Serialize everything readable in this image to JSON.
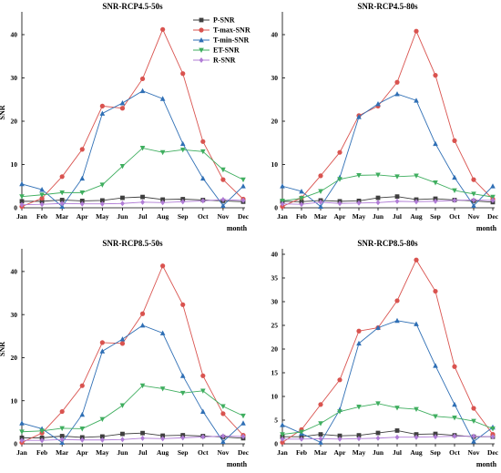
{
  "colors": {
    "P-SNR": "#3f3f3f",
    "T-max-SNR": "#d9534f",
    "T-min-SNR": "#2f6fb5",
    "ET-SNR": "#3fae5f",
    "R-SNR": "#b07cd6"
  },
  "legend": [
    "P-SNR",
    "T-max-SNR",
    "T-min-SNR",
    "ET-SNR",
    "R-SNR"
  ],
  "chart_data": [
    {
      "type": "line",
      "title": "SNR-RCP4.5-50s",
      "xlabel": "month",
      "ylabel": "SNR",
      "categories": [
        "Jan",
        "Feb",
        "Mar",
        "Apr",
        "May",
        "Jun",
        "Jul",
        "Aug",
        "Sep",
        "Oct",
        "Nov",
        "Dec"
      ],
      "ylim": [
        0,
        44
      ],
      "yticks": [
        0,
        10,
        20,
        30,
        40
      ],
      "legend_position": "top-right",
      "series": [
        {
          "name": "P-SNR",
          "marker": "square",
          "values": [
            1.5,
            1.5,
            1.8,
            1.6,
            1.7,
            2.3,
            2.5,
            1.9,
            2.0,
            1.8,
            1.6,
            1.4
          ]
        },
        {
          "name": "T-max-SNR",
          "marker": "circle",
          "values": [
            0.3,
            2.2,
            7.2,
            13.5,
            23.5,
            23.0,
            29.8,
            41.2,
            31.0,
            15.3,
            6.5,
            2.0
          ]
        },
        {
          "name": "T-min-SNR",
          "marker": "triangle-up",
          "values": [
            5.5,
            4.2,
            0.3,
            6.8,
            21.8,
            24.2,
            27.0,
            25.2,
            14.8,
            6.8,
            0.5,
            5.0
          ]
        },
        {
          "name": "ET-SNR",
          "marker": "triangle-down",
          "values": [
            2.6,
            3.0,
            3.5,
            3.5,
            5.3,
            9.6,
            13.8,
            12.8,
            13.4,
            13.0,
            8.8,
            6.5
          ]
        },
        {
          "name": "R-SNR",
          "marker": "diamond",
          "values": [
            0.7,
            0.8,
            1.0,
            0.9,
            0.9,
            1.0,
            1.3,
            1.2,
            1.4,
            1.6,
            1.9,
            1.7
          ]
        }
      ]
    },
    {
      "type": "line",
      "title": "SNR-RCP4.5-80s",
      "xlabel": "month",
      "ylabel": "",
      "categories": [
        "Jan",
        "Feb",
        "Mar",
        "Apr",
        "May",
        "Jun",
        "Jul",
        "Aug",
        "Sep",
        "Oct",
        "Nov",
        "Dec"
      ],
      "ylim": [
        0,
        44
      ],
      "yticks": [
        0,
        10,
        20,
        30,
        40
      ],
      "series": [
        {
          "name": "P-SNR",
          "marker": "square",
          "values": [
            1.5,
            1.4,
            1.7,
            1.5,
            1.6,
            2.3,
            2.6,
            1.9,
            2.1,
            1.8,
            1.6,
            1.3
          ]
        },
        {
          "name": "T-max-SNR",
          "marker": "circle",
          "values": [
            0.3,
            2.3,
            7.4,
            12.8,
            21.3,
            23.5,
            29.0,
            40.8,
            30.6,
            15.5,
            6.5,
            2.0
          ]
        },
        {
          "name": "T-min-SNR",
          "marker": "triangle-up",
          "values": [
            5.0,
            3.8,
            0.3,
            7.0,
            21.0,
            24.0,
            26.3,
            24.8,
            14.8,
            7.0,
            0.5,
            5.0
          ]
        },
        {
          "name": "ET-SNR",
          "marker": "triangle-down",
          "values": [
            1.6,
            2.2,
            3.8,
            6.6,
            7.5,
            7.6,
            7.2,
            7.4,
            5.8,
            4.0,
            3.2,
            2.5
          ]
        },
        {
          "name": "R-SNR",
          "marker": "diamond",
          "values": [
            0.9,
            0.8,
            1.3,
            1.0,
            1.1,
            1.2,
            1.5,
            1.4,
            1.5,
            1.7,
            1.8,
            1.7
          ]
        }
      ]
    },
    {
      "type": "line",
      "title": "SNR-RCP8.5-50s",
      "xlabel": "month",
      "ylabel": "SNR",
      "categories": [
        "Jan",
        "Feb",
        "Mar",
        "Apr",
        "May",
        "Jun",
        "Jul",
        "Aug",
        "Sep",
        "Oct",
        "Nov",
        "Dec"
      ],
      "ylim": [
        0,
        44
      ],
      "yticks": [
        0,
        10,
        20,
        30,
        40
      ],
      "series": [
        {
          "name": "P-SNR",
          "marker": "square",
          "values": [
            1.4,
            1.4,
            1.8,
            1.5,
            1.7,
            2.3,
            2.5,
            1.9,
            2.0,
            1.8,
            1.6,
            1.3
          ]
        },
        {
          "name": "T-max-SNR",
          "marker": "circle",
          "values": [
            0.3,
            2.5,
            7.5,
            13.5,
            23.5,
            23.3,
            30.2,
            41.3,
            32.3,
            15.8,
            7.0,
            2.0
          ]
        },
        {
          "name": "T-min-SNR",
          "marker": "triangle-up",
          "values": [
            4.8,
            3.5,
            0.3,
            6.8,
            21.5,
            24.3,
            27.5,
            25.7,
            15.8,
            7.5,
            0.5,
            4.8
          ]
        },
        {
          "name": "ET-SNR",
          "marker": "triangle-down",
          "values": [
            2.8,
            3.0,
            3.6,
            3.5,
            5.7,
            8.9,
            13.5,
            12.8,
            11.8,
            12.3,
            8.7,
            6.5
          ]
        },
        {
          "name": "R-SNR",
          "marker": "diamond",
          "values": [
            0.8,
            0.8,
            1.0,
            0.9,
            0.9,
            1.0,
            1.3,
            1.2,
            1.4,
            1.6,
            1.8,
            1.7
          ]
        }
      ]
    },
    {
      "type": "line",
      "title": "SNR-RCP8.5-80s",
      "xlabel": "month",
      "ylabel": "",
      "categories": [
        "Jan",
        "Feb",
        "Mar",
        "Apr",
        "May",
        "Jun",
        "Jul",
        "Aug",
        "Sep",
        "Oct",
        "Nov",
        "Dec"
      ],
      "ylim": [
        0,
        40
      ],
      "yticks": [
        0,
        5,
        10,
        15,
        20,
        25,
        30,
        35,
        40
      ],
      "series": [
        {
          "name": "P-SNR",
          "marker": "square",
          "values": [
            1.5,
            1.5,
            2.0,
            1.7,
            1.8,
            2.3,
            2.8,
            2.0,
            2.1,
            1.8,
            1.5,
            1.5
          ]
        },
        {
          "name": "T-max-SNR",
          "marker": "circle",
          "values": [
            0.3,
            3.0,
            8.3,
            13.5,
            23.8,
            24.5,
            30.2,
            38.8,
            32.2,
            16.3,
            7.5,
            2.0
          ]
        },
        {
          "name": "T-min-SNR",
          "marker": "triangle-up",
          "values": [
            4.0,
            2.2,
            0.3,
            7.2,
            21.2,
            24.5,
            26.0,
            25.3,
            16.5,
            8.3,
            0.5,
            3.5
          ]
        },
        {
          "name": "ET-SNR",
          "marker": "triangle-down",
          "values": [
            2.0,
            2.5,
            4.3,
            6.8,
            7.8,
            8.5,
            7.6,
            7.3,
            5.8,
            5.5,
            4.8,
            3.2
          ]
        },
        {
          "name": "R-SNR",
          "marker": "diamond",
          "values": [
            1.0,
            1.0,
            1.1,
            1.0,
            1.1,
            1.2,
            1.4,
            1.4,
            1.5,
            1.6,
            1.6,
            1.5
          ]
        }
      ]
    }
  ]
}
